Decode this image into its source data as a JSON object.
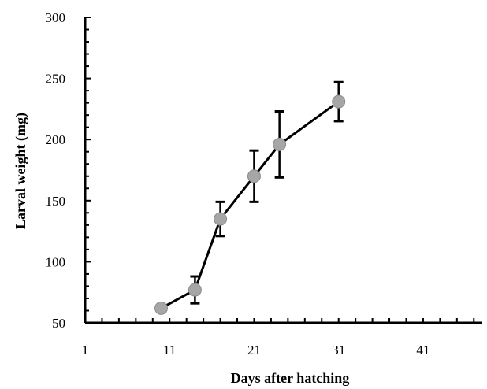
{
  "chart_data": {
    "type": "line",
    "title": "",
    "xlabel": "Days after hatching",
    "ylabel": "Larval weight (mg)",
    "xlim": [
      1,
      48
    ],
    "ylim": [
      50,
      300
    ],
    "x_ticks": [
      1,
      11,
      21,
      31,
      41
    ],
    "y_ticks": [
      50,
      100,
      150,
      200,
      250,
      300
    ],
    "grid": false,
    "legend": "none",
    "series": [
      {
        "x": [
          10,
          14,
          17,
          21,
          24,
          31
        ],
        "y": [
          62,
          77,
          135,
          170,
          196,
          231
        ],
        "error": [
          2,
          11,
          14,
          21,
          27,
          16
        ],
        "marker_color": "#a6a6a6",
        "line_color": "#000000"
      }
    ]
  }
}
